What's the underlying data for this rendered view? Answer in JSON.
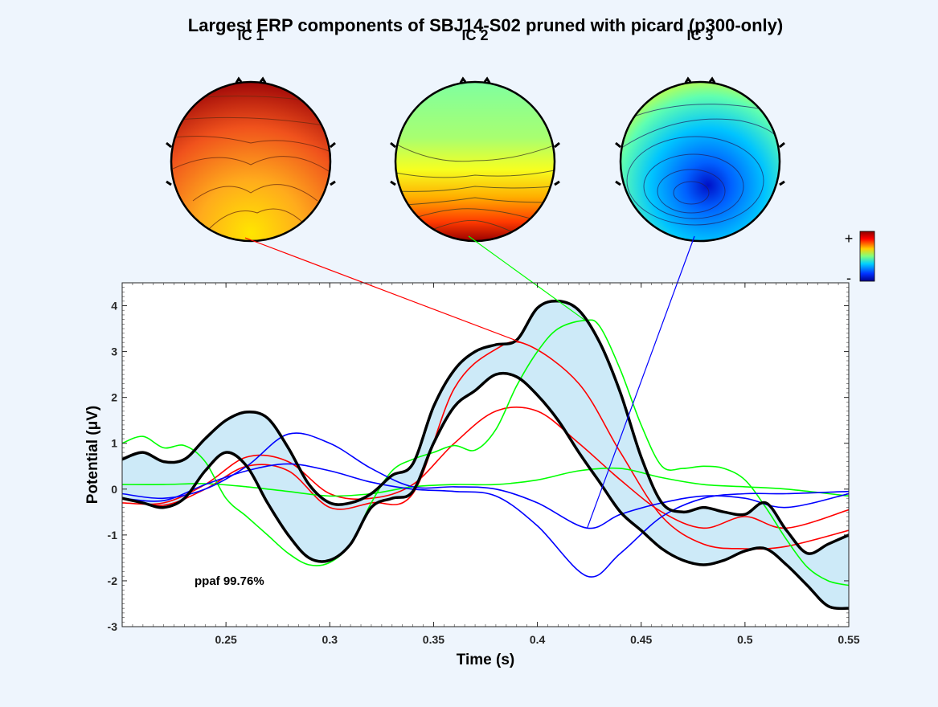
{
  "chart_data": {
    "type": "line",
    "title": "Largest ERP components of SBJ14-S02 pruned with picard (p300-only)",
    "xlabel": "Time (s)",
    "ylabel": "Potential (μV)",
    "xlim": [
      0.2,
      0.55
    ],
    "ylim": [
      -3,
      4.5
    ],
    "xticks": [
      "0.25",
      "0.3",
      "0.35",
      "0.4",
      "0.45",
      "0.5",
      "0.55"
    ],
    "yticks": [
      "-3",
      "-2",
      "-1",
      "0",
      "1",
      "2",
      "3",
      "4"
    ],
    "annotation": "ppaf 99.76%",
    "colorbar": {
      "plus": "+",
      "minus": "-"
    },
    "components": [
      {
        "label": "IC 1",
        "color": "#ff0000",
        "peak_x": 0.395,
        "peak_y": 3.15
      },
      {
        "label": "IC 2",
        "color": "#00ff00",
        "peak_x": 0.423,
        "peak_y": 3.68
      },
      {
        "label": "IC 3",
        "color": "#0000ff",
        "peak_x": 0.424,
        "peak_y": -0.85
      }
    ],
    "envelope": {
      "x": [
        0.2,
        0.21,
        0.22,
        0.23,
        0.24,
        0.25,
        0.26,
        0.27,
        0.28,
        0.29,
        0.3,
        0.31,
        0.32,
        0.33,
        0.34,
        0.35,
        0.36,
        0.37,
        0.38,
        0.39,
        0.4,
        0.41,
        0.42,
        0.43,
        0.44,
        0.45,
        0.46,
        0.47,
        0.48,
        0.49,
        0.5,
        0.51,
        0.52,
        0.53,
        0.54,
        0.55
      ],
      "upper": [
        0.65,
        0.8,
        0.6,
        0.65,
        1.1,
        1.5,
        1.68,
        1.55,
        0.9,
        0.1,
        -0.3,
        -0.3,
        -0.1,
        0.3,
        0.55,
        1.8,
        2.6,
        3.0,
        3.15,
        3.25,
        3.95,
        4.1,
        3.9,
        3.2,
        2.1,
        0.7,
        -0.3,
        -0.5,
        -0.4,
        -0.5,
        -0.55,
        -0.3,
        -0.9,
        -1.4,
        -1.2,
        -1.0
      ],
      "lower": [
        -0.2,
        -0.3,
        -0.4,
        -0.2,
        0.4,
        0.8,
        0.5,
        -0.3,
        -1.0,
        -1.5,
        -1.55,
        -1.2,
        -0.4,
        -0.2,
        -0.05,
        1.0,
        1.8,
        2.15,
        2.5,
        2.45,
        2.05,
        1.5,
        0.8,
        0.15,
        -0.5,
        -0.9,
        -1.3,
        -1.55,
        -1.65,
        -1.55,
        -1.35,
        -1.3,
        -1.65,
        -2.1,
        -2.55,
        -2.6
      ]
    },
    "series": [
      {
        "color": "#ff0000",
        "x": [
          0.2,
          0.22,
          0.24,
          0.26,
          0.28,
          0.3,
          0.32,
          0.34,
          0.36,
          0.38,
          0.4,
          0.42,
          0.44,
          0.46,
          0.48,
          0.5,
          0.52,
          0.55
        ],
        "y": [
          -0.3,
          -0.3,
          0.1,
          0.7,
          0.6,
          -0.1,
          -0.2,
          0.1,
          1.0,
          1.7,
          1.7,
          1.0,
          0.2,
          -0.5,
          -0.85,
          -0.6,
          -0.85,
          -0.45
        ]
      },
      {
        "color": "#ff0000",
        "x": [
          0.2,
          0.22,
          0.24,
          0.26,
          0.28,
          0.3,
          0.32,
          0.34,
          0.36,
          0.38,
          0.395,
          0.42,
          0.44,
          0.46,
          0.48,
          0.5,
          0.52,
          0.55
        ],
        "y": [
          -0.2,
          -0.35,
          0.0,
          0.5,
          0.4,
          -0.4,
          -0.3,
          -0.1,
          2.2,
          3.05,
          3.15,
          2.3,
          0.8,
          -0.6,
          -1.2,
          -1.3,
          -1.25,
          -0.9
        ]
      },
      {
        "color": "#00ff00",
        "x": [
          0.2,
          0.21,
          0.22,
          0.23,
          0.24,
          0.25,
          0.26,
          0.27,
          0.28,
          0.29,
          0.3,
          0.31,
          0.32,
          0.33,
          0.34,
          0.35,
          0.36,
          0.37,
          0.38,
          0.39,
          0.4,
          0.41,
          0.423,
          0.43,
          0.44,
          0.45,
          0.46,
          0.47,
          0.48,
          0.49,
          0.5,
          0.51,
          0.52,
          0.53,
          0.54,
          0.55
        ],
        "y": [
          1.0,
          1.15,
          0.9,
          0.95,
          0.6,
          -0.2,
          -0.6,
          -1.0,
          -1.4,
          -1.65,
          -1.6,
          -1.2,
          -0.3,
          0.4,
          0.65,
          0.8,
          0.95,
          0.85,
          1.3,
          2.25,
          3.0,
          3.5,
          3.68,
          3.55,
          2.6,
          1.4,
          0.5,
          0.45,
          0.5,
          0.45,
          0.2,
          -0.4,
          -1.1,
          -1.7,
          -2.0,
          -2.1
        ]
      },
      {
        "color": "#00ff00",
        "x": [
          0.2,
          0.22,
          0.24,
          0.26,
          0.28,
          0.3,
          0.32,
          0.34,
          0.36,
          0.38,
          0.4,
          0.42,
          0.44,
          0.46,
          0.48,
          0.5,
          0.52,
          0.55
        ],
        "y": [
          0.1,
          0.1,
          0.12,
          0.05,
          -0.05,
          -0.15,
          -0.1,
          0.05,
          0.1,
          0.1,
          0.2,
          0.4,
          0.45,
          0.25,
          0.1,
          0.05,
          0.0,
          -0.15
        ]
      },
      {
        "color": "#0000ff",
        "x": [
          0.2,
          0.22,
          0.24,
          0.26,
          0.28,
          0.3,
          0.32,
          0.34,
          0.36,
          0.38,
          0.4,
          0.424,
          0.44,
          0.46,
          0.48,
          0.5,
          0.52,
          0.55
        ],
        "y": [
          -0.1,
          -0.2,
          0.0,
          0.5,
          1.2,
          1.0,
          0.45,
          0.05,
          0.05,
          0.0,
          -0.3,
          -0.85,
          -0.55,
          -0.3,
          -0.15,
          -0.2,
          -0.4,
          -0.1
        ]
      },
      {
        "color": "#0000ff",
        "x": [
          0.2,
          0.22,
          0.24,
          0.26,
          0.28,
          0.3,
          0.32,
          0.34,
          0.36,
          0.38,
          0.4,
          0.424,
          0.44,
          0.46,
          0.48,
          0.5,
          0.52,
          0.55
        ],
        "y": [
          -0.2,
          -0.25,
          0.1,
          0.4,
          0.55,
          0.4,
          0.15,
          0.0,
          -0.05,
          -0.15,
          -0.8,
          -1.9,
          -1.4,
          -0.6,
          -0.2,
          -0.1,
          -0.1,
          -0.05
        ]
      }
    ]
  }
}
